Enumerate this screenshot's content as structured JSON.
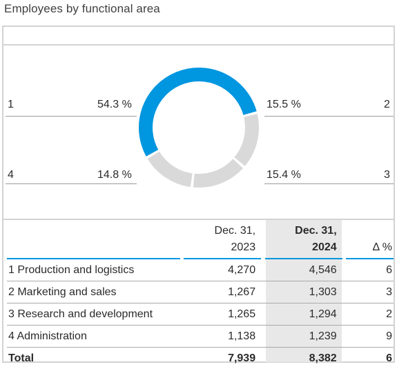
{
  "title": "Employees by functional area",
  "chart_data": {
    "type": "pie",
    "variant": "donut",
    "slices": [
      {
        "label": "1",
        "value": 54.3,
        "value_text": "54.3 %",
        "color": "#0096e0"
      },
      {
        "label": "2",
        "value": 15.5,
        "value_text": "15.5 %",
        "color": "#d9d9d9"
      },
      {
        "label": "3",
        "value": 15.4,
        "value_text": "15.4 %",
        "color": "#d9d9d9"
      },
      {
        "label": "4",
        "value": 14.8,
        "value_text": "14.8 %",
        "color": "#d9d9d9"
      }
    ]
  },
  "table": {
    "headers": {
      "col2_line1": "Dec. 31,",
      "col2_line2": "2023",
      "col3_line1": "Dec. 31,",
      "col3_line2": "2024",
      "col4": "Δ %"
    },
    "rows": [
      {
        "label": "1 Production and logistics",
        "v2023": "4,270",
        "v2024": "4,546",
        "delta": "6"
      },
      {
        "label": "2 Marketing and sales",
        "v2023": "1,267",
        "v2024": "1,303",
        "delta": "3"
      },
      {
        "label": "3 Research and development",
        "v2023": "1,265",
        "v2024": "1,294",
        "delta": "2"
      },
      {
        "label": "4 Administration",
        "v2023": "1,138",
        "v2024": "1,239",
        "delta": "9"
      }
    ],
    "total": {
      "label": "Total",
      "v2023": "7,939",
      "v2024": "8,382",
      "delta": "6"
    }
  }
}
